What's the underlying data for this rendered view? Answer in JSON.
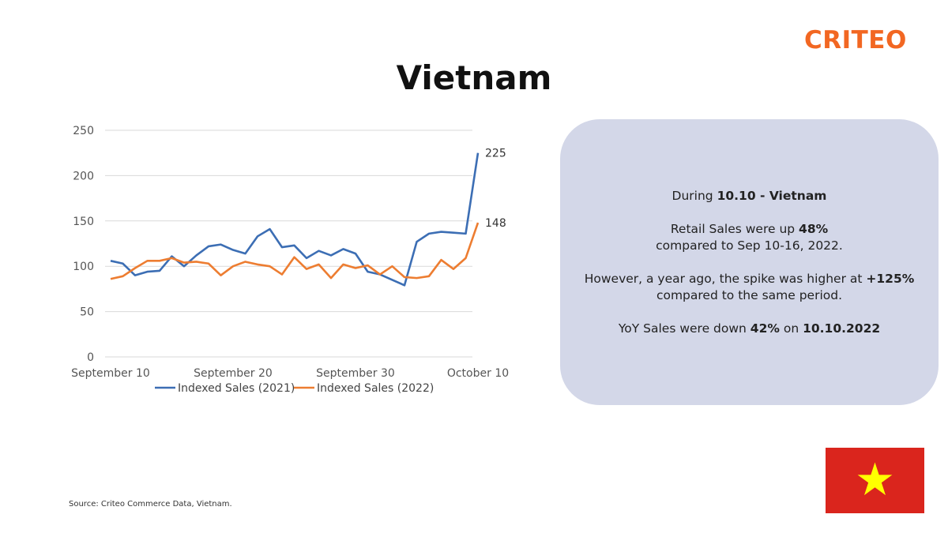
{
  "brand": {
    "logo_text": "CRITEO",
    "color": "#f26722"
  },
  "title": "Vietnam",
  "chart_data": {
    "type": "line",
    "x": [
      1,
      2,
      3,
      4,
      5,
      6,
      7,
      8,
      9,
      10,
      11,
      12,
      13,
      14,
      15,
      16,
      17,
      18,
      19,
      20,
      21,
      22,
      23,
      24,
      25,
      26,
      27,
      28,
      29,
      30,
      31
    ],
    "x_ticks": [
      {
        "x": 1,
        "label": "September 10"
      },
      {
        "x": 11,
        "label": "September 20"
      },
      {
        "x": 21,
        "label": "September 30"
      },
      {
        "x": 31,
        "label": "October 10"
      }
    ],
    "ylim": [
      0,
      250
    ],
    "y_ticks": [
      0,
      50,
      100,
      150,
      200,
      250
    ],
    "grid": true,
    "legend": "bottom",
    "series": [
      {
        "name": "Indexed Sales (2021)",
        "color": "#3c6eb4",
        "values": [
          106,
          103,
          90,
          94,
          95,
          111,
          100,
          112,
          122,
          124,
          118,
          114,
          133,
          141,
          121,
          123,
          109,
          117,
          112,
          119,
          114,
          94,
          91,
          85,
          79,
          127,
          136,
          138,
          137,
          136,
          225
        ],
        "end_label": "225"
      },
      {
        "name": "Indexed Sales (2022)",
        "color": "#ed7d31",
        "values": [
          86,
          89,
          98,
          106,
          106,
          109,
          104,
          105,
          103,
          90,
          100,
          105,
          102,
          100,
          91,
          110,
          97,
          102,
          87,
          102,
          98,
          101,
          91,
          100,
          88,
          87,
          89,
          107,
          97,
          109,
          148
        ],
        "end_label": "148"
      }
    ]
  },
  "panel": {
    "line1_pre": "During ",
    "line1_bold": "10.10 -  Vietnam",
    "line2_pre": "Retail Sales were up ",
    "line2_bold": "48%",
    "line3": "compared to Sep 10-16, 2022.",
    "line4_pre": "However, a year ago, the spike was higher at ",
    "line4_bold": "+125%",
    "line5": "compared to the same period.",
    "line6_pre": "YoY Sales were down ",
    "line6_bold1": "42%",
    "line6_mid": " on ",
    "line6_bold2": "10.10.2022"
  },
  "source": "Source: Criteo Commerce Data, Vietnam.",
  "flag": {
    "country": "Vietnam",
    "field_color": "#da251d",
    "star_color": "#ffff00"
  }
}
